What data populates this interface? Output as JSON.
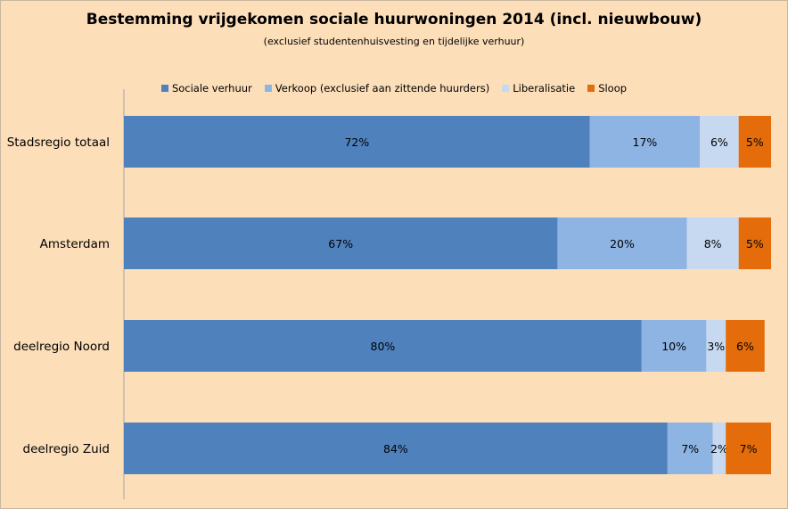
{
  "chart_data": {
    "type": "bar",
    "orientation": "horizontal",
    "stacked": true,
    "title": "Bestemming vrijgekomen sociale huurwoningen  2014 (incl. nieuwbouw)",
    "subtitle": "(exclusief  studentenhuisvesting en tijdelijke  verhuur)",
    "categories": [
      "Stadsregio totaal",
      "Amsterdam",
      "deelregio Noord",
      "deelregio Zuid"
    ],
    "xlim": [
      0,
      100
    ],
    "legend_position": "top",
    "grid": false,
    "series": [
      {
        "name": "Sociale verhuur",
        "color": "#4f81bd",
        "values": [
          72,
          67,
          80,
          84
        ],
        "labels": [
          "72%",
          "67%",
          "80%",
          "84%"
        ]
      },
      {
        "name": "Verkoop (exclusief aan zittende huurders)",
        "color": "#8eb4e3",
        "values": [
          17,
          20,
          10,
          7
        ],
        "labels": [
          "17%",
          "20%",
          "10%",
          "7%"
        ]
      },
      {
        "name": "Liberalisatie",
        "color": "#c6d9f1",
        "values": [
          6,
          8,
          3,
          2
        ],
        "labels": [
          "6%",
          "8%",
          "3%",
          "2%"
        ]
      },
      {
        "name": "Sloop",
        "color": "#e46c0a",
        "values": [
          5,
          5,
          6,
          7
        ],
        "labels": [
          "5%",
          "5%",
          "6%",
          "7%"
        ]
      }
    ]
  }
}
